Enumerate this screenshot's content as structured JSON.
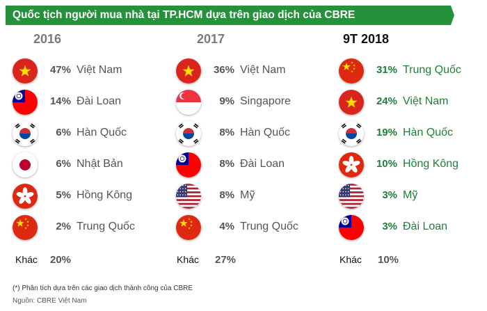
{
  "title": "Quốc tịch người mua nhà tại TP.HCM dựa trên giao dịch của CBRE",
  "colors": {
    "banner": "#25913a",
    "highlight": "#1f7f3a"
  },
  "chart_data": {
    "type": "table",
    "columns": [
      {
        "year": "2016",
        "rows": [
          {
            "pct": "47%",
            "country": "Việt Nam",
            "flag": "vietnam-flag-icon"
          },
          {
            "pct": "14%",
            "country": "Đài Loan",
            "flag": "taiwan-flag-icon"
          },
          {
            "pct": "6%",
            "country": "Hàn Quốc",
            "flag": "korea-flag-icon"
          },
          {
            "pct": "6%",
            "country": "Nhật Bản",
            "flag": "japan-flag-icon"
          },
          {
            "pct": "5%",
            "country": "Hồng Kông",
            "flag": "hongkong-flag-icon"
          },
          {
            "pct": "2%",
            "country": "Trung Quốc",
            "flag": "china-flag-icon"
          }
        ],
        "other_label": "Khác",
        "other_pct": "20%"
      },
      {
        "year": "2017",
        "rows": [
          {
            "pct": "36%",
            "country": "Việt Nam",
            "flag": "vietnam-flag-icon"
          },
          {
            "pct": "9%",
            "country": "Singapore",
            "flag": "singapore-flag-icon"
          },
          {
            "pct": "8%",
            "country": "Hàn Quốc",
            "flag": "korea-flag-icon"
          },
          {
            "pct": "8%",
            "country": "Đài Loan",
            "flag": "taiwan-flag-icon"
          },
          {
            "pct": "8%",
            "country": "Mỹ",
            "flag": "usa-flag-icon"
          },
          {
            "pct": "4%",
            "country": "Trung Quốc",
            "flag": "china-flag-icon"
          }
        ],
        "other_label": "Khác",
        "other_pct": "27%"
      },
      {
        "year": "9T 2018",
        "rows": [
          {
            "pct": "31%",
            "country": "Trung Quốc",
            "flag": "china-flag-icon"
          },
          {
            "pct": "24%",
            "country": "Việt Nam",
            "flag": "vietnam-flag-icon"
          },
          {
            "pct": "19%",
            "country": "Hàn Quốc",
            "flag": "korea-flag-icon"
          },
          {
            "pct": "10%",
            "country": "Hồng Kông",
            "flag": "hongkong-flag-icon"
          },
          {
            "pct": "3%",
            "country": "Mỹ",
            "flag": "usa-flag-icon"
          },
          {
            "pct": "3%",
            "country": "Đài Loan",
            "flag": "taiwan-flag-icon"
          }
        ],
        "other_label": "Khác",
        "other_pct": "10%"
      }
    ]
  },
  "footnote": "(*) Phân tích dựa trên các giao dịch thành công của CBRE",
  "source": "Nguồn: CBRE Việt Nam"
}
